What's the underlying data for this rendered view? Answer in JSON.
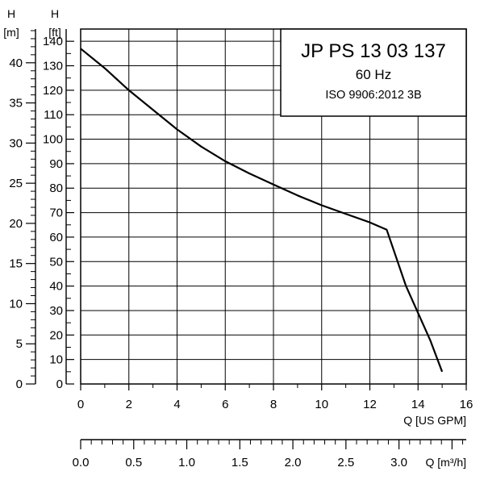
{
  "chart_data": {
    "type": "line",
    "title": "JP PS 13 03 137",
    "subtitle": "60 Hz",
    "standard": "ISO 9906:2012 3B",
    "xlabel": "Q [US GPM]",
    "x2label": "Q [m³/h]",
    "ylabel_ft_top": "H",
    "ylabel_ft_unit": "[ft]",
    "ylabel_m_top": "H",
    "ylabel_m_unit": "[m]",
    "xlim": [
      0,
      16
    ],
    "ylim_ft": [
      0,
      145
    ],
    "ylim_m": [
      0,
      44.2
    ],
    "x_ticks": [
      0,
      2,
      4,
      6,
      8,
      10,
      12,
      14,
      16
    ],
    "y_ft_ticks": [
      0,
      10,
      20,
      30,
      40,
      50,
      60,
      70,
      80,
      90,
      100,
      110,
      120,
      130,
      140
    ],
    "y_m_ticks": [
      0,
      5,
      10,
      15,
      20,
      25,
      30,
      35,
      40
    ],
    "x2_ticks": [
      "0.0",
      "0.5",
      "1.0",
      "1.5",
      "2.0",
      "2.5",
      "3.0"
    ],
    "x2_tick_values": [
      0,
      0.5,
      1.0,
      1.5,
      2.0,
      2.5,
      3.0
    ],
    "grid": true,
    "legend_position": "top-right",
    "line_color": "#000000",
    "series": [
      {
        "x": [
          0,
          1,
          2,
          3,
          4,
          5,
          6,
          7,
          8,
          9,
          10,
          11,
          12,
          12.7,
          13.5,
          14.5,
          15
        ],
        "y": [
          137,
          129,
          120,
          112,
          104,
          97,
          91,
          86,
          81.5,
          77,
          73,
          69.5,
          66,
          63,
          40,
          18,
          5
        ]
      }
    ]
  }
}
